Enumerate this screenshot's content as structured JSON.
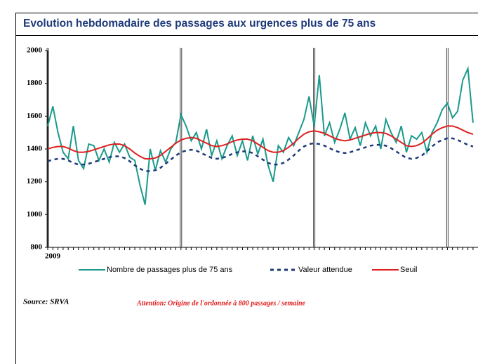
{
  "chart_data": {
    "type": "line",
    "title": "Evolution hebdomadaire des passages aux urgences plus de 75 ans",
    "categories": [
      "2009",
      null,
      null,
      null,
      null,
      null,
      null,
      null,
      null,
      null,
      null,
      null,
      null,
      null,
      null,
      null,
      null,
      null,
      null,
      null,
      null,
      null,
      null,
      null,
      null,
      null,
      null,
      null,
      null,
      null,
      null,
      null,
      null,
      null,
      null,
      null,
      null,
      null,
      null,
      null,
      null,
      null,
      null,
      null,
      null,
      null,
      null,
      null,
      null,
      null,
      null,
      null,
      null,
      null,
      null,
      null,
      null,
      null,
      null,
      null,
      null,
      null,
      null,
      null,
      null,
      null,
      null,
      null,
      null,
      null,
      null,
      null,
      null,
      null,
      null,
      null,
      null,
      null,
      null,
      null,
      null,
      null,
      null,
      null
    ],
    "series": [
      {
        "name": "Nombre de passages plus de 75 ans",
        "color": "#1a9a8c",
        "dash": false,
        "values": [
          1540,
          1660,
          1500,
          1380,
          1340,
          1540,
          1330,
          1280,
          1430,
          1420,
          1330,
          1400,
          1320,
          1440,
          1380,
          1430,
          1350,
          1330,
          1180,
          1060,
          1400,
          1270,
          1390,
          1320,
          1400,
          1440,
          1610,
          1540,
          1450,
          1500,
          1400,
          1520,
          1360,
          1450,
          1340,
          1420,
          1480,
          1360,
          1450,
          1330,
          1480,
          1370,
          1460,
          1300,
          1200,
          1420,
          1380,
          1470,
          1420,
          1500,
          1580,
          1720,
          1540,
          1850,
          1480,
          1560,
          1440,
          1520,
          1620,
          1460,
          1530,
          1420,
          1560,
          1480,
          1540,
          1400,
          1580,
          1500,
          1440,
          1540,
          1380,
          1480,
          1460,
          1500,
          1380,
          1500,
          1560,
          1640,
          1680,
          1590,
          1630,
          1820,
          1890,
          1560
        ]
      },
      {
        "name": "Valeur attendue",
        "color": "#1f3a7a",
        "dash": true,
        "values": [
          1325,
          1335,
          1340,
          1340,
          1330,
          1315,
          1305,
          1305,
          1310,
          1320,
          1330,
          1340,
          1350,
          1355,
          1355,
          1345,
          1325,
          1300,
          1280,
          1265,
          1265,
          1270,
          1285,
          1310,
          1335,
          1360,
          1380,
          1390,
          1395,
          1390,
          1375,
          1360,
          1345,
          1340,
          1345,
          1355,
          1370,
          1380,
          1385,
          1385,
          1375,
          1355,
          1335,
          1315,
          1305,
          1305,
          1315,
          1335,
          1360,
          1390,
          1415,
          1430,
          1435,
          1430,
          1420,
          1405,
          1390,
          1380,
          1375,
          1380,
          1390,
          1400,
          1410,
          1420,
          1425,
          1425,
          1420,
          1405,
          1385,
          1365,
          1345,
          1340,
          1345,
          1360,
          1385,
          1415,
          1440,
          1455,
          1465,
          1465,
          1455,
          1440,
          1425,
          1415
        ]
      },
      {
        "name": "Seuil",
        "color": "#e02020",
        "dash": false,
        "values": [
          1400,
          1410,
          1415,
          1415,
          1405,
          1390,
          1380,
          1380,
          1385,
          1395,
          1405,
          1415,
          1425,
          1430,
          1430,
          1420,
          1400,
          1375,
          1355,
          1340,
          1340,
          1345,
          1360,
          1385,
          1410,
          1435,
          1455,
          1465,
          1470,
          1465,
          1450,
          1435,
          1420,
          1415,
          1420,
          1430,
          1445,
          1455,
          1460,
          1460,
          1450,
          1430,
          1410,
          1390,
          1380,
          1380,
          1390,
          1410,
          1435,
          1465,
          1490,
          1505,
          1510,
          1505,
          1495,
          1480,
          1465,
          1455,
          1450,
          1455,
          1465,
          1475,
          1485,
          1495,
          1500,
          1500,
          1495,
          1480,
          1460,
          1440,
          1420,
          1415,
          1420,
          1435,
          1460,
          1490,
          1515,
          1530,
          1540,
          1540,
          1530,
          1515,
          1500,
          1490
        ]
      }
    ],
    "ylim": [
      800,
      2000
    ],
    "yticks": [
      800,
      1000,
      1200,
      1400,
      1600,
      1800,
      2000
    ],
    "source": "Source: SRVA",
    "note": "Attention: Origine de l'ordonnée à 800 passages / semaine"
  }
}
